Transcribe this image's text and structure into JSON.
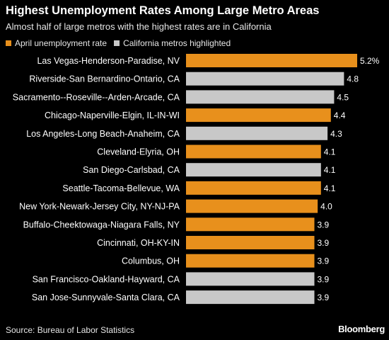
{
  "header": {
    "title": "Highest Unemployment Rates Among Large Metro Areas",
    "subtitle": "Almost half of large metros with the highest rates are in California"
  },
  "legend": [
    {
      "label": "April unemployment rate",
      "color": "#e8901c"
    },
    {
      "label": "California metros highlighted",
      "color": "#c8c8c8"
    }
  ],
  "chart_data": {
    "type": "bar",
    "orientation": "horizontal",
    "categories": [
      "Las Vegas-Henderson-Paradise, NV",
      "Riverside-San Bernardino-Ontario, CA",
      "Sacramento--Roseville--Arden-Arcade, CA",
      "Chicago-Naperville-Elgin, IL-IN-WI",
      "Los Angeles-Long Beach-Anaheim, CA",
      "Cleveland-Elyria, OH",
      "San Diego-Carlsbad, CA",
      "Seattle-Tacoma-Bellevue, WA",
      "New York-Newark-Jersey City, NY-NJ-PA",
      "Buffalo-Cheektowaga-Niagara Falls, NY",
      "Cincinnati, OH-KY-IN",
      "Columbus, OH",
      "San Francisco-Oakland-Hayward, CA",
      "San Jose-Sunnyvale-Santa Clara, CA"
    ],
    "values": [
      5.2,
      4.8,
      4.5,
      4.4,
      4.3,
      4.1,
      4.1,
      4.1,
      4.0,
      3.9,
      3.9,
      3.9,
      3.9,
      3.9
    ],
    "value_labels": [
      "5.2%",
      "4.8",
      "4.5",
      "4.4",
      "4.3",
      "4.1",
      "4.1",
      "4.1",
      "4.0",
      "3.9",
      "3.9",
      "3.9",
      "3.9",
      "3.9"
    ],
    "california": [
      false,
      true,
      true,
      false,
      true,
      false,
      true,
      false,
      false,
      false,
      false,
      false,
      true,
      true
    ],
    "colors": {
      "default": "#e8901c",
      "california": "#c8c8c8"
    },
    "xlim": [
      0,
      5.2
    ],
    "grid": false
  },
  "footer": {
    "source": "Source:  Bureau of Labor Statistics",
    "brand": "Bloomberg"
  }
}
